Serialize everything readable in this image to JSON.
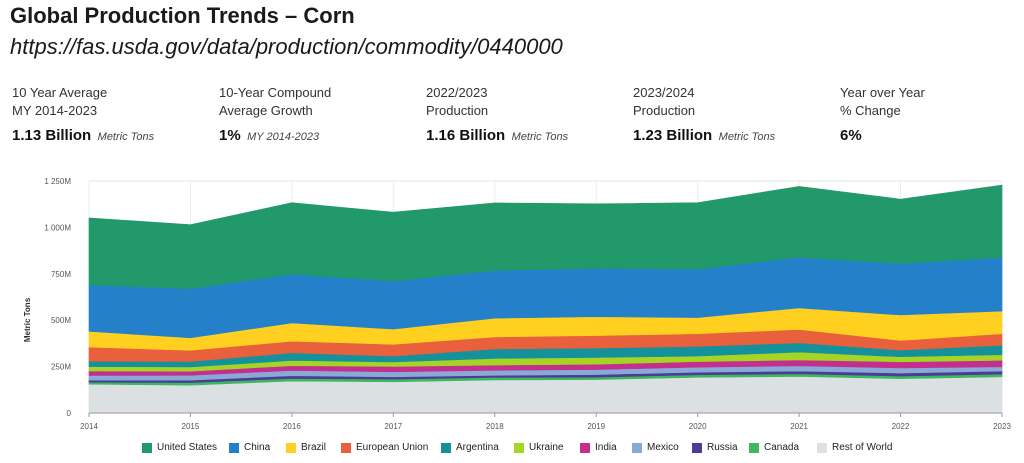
{
  "header": {
    "title": "Global Production Trends – Corn",
    "url": "https://fas.usda.gov/data/production/commodity/0440000"
  },
  "stats": [
    {
      "label1": "10 Year Average",
      "label2": "MY 2014-2023",
      "value": "1.13 Billion",
      "unit": "Metric Tons"
    },
    {
      "label1": "10-Year Compound",
      "label2": "Average Growth",
      "value": "1%",
      "unit": "MY 2014-2023"
    },
    {
      "label1": "2022/2023",
      "label2": "Production",
      "value": "1.16 Billion",
      "unit": "Metric Tons"
    },
    {
      "label1": "2023/2024",
      "label2": "Production",
      "value": "1.23 Billion",
      "unit": "Metric Tons"
    },
    {
      "label1": "Year over Year",
      "label2": "% Change",
      "value": "6%",
      "unit": ""
    }
  ],
  "chart_data": {
    "type": "area",
    "stacked": true,
    "title": "",
    "xlabel": "",
    "ylabel": "Metric Tons",
    "x": [
      2014,
      2015,
      2016,
      2017,
      2018,
      2019,
      2020,
      2021,
      2022,
      2023
    ],
    "ylim": [
      0,
      1250
    ],
    "yticks": [
      0,
      250,
      500,
      750,
      1000,
      1250
    ],
    "ytick_labels": [
      "0",
      "250M",
      "500M",
      "750M",
      "1 000M",
      "1 250M"
    ],
    "series": [
      {
        "name": "Rest of World",
        "color": "#dbe0e3",
        "values": [
          155,
          150,
          172,
          168,
          178,
          180,
          192,
          197,
          185,
          195
        ]
      },
      {
        "name": "Canada",
        "color": "#3db85c",
        "values": [
          11,
          14,
          14,
          14,
          14,
          13,
          14,
          14,
          14,
          15
        ]
      },
      {
        "name": "Russia",
        "color": "#4b3c96",
        "values": [
          11,
          13,
          15,
          13,
          11,
          14,
          14,
          15,
          16,
          16
        ]
      },
      {
        "name": "Mexico",
        "color": "#8aa9d6",
        "values": [
          25,
          26,
          28,
          27,
          27,
          27,
          27,
          28,
          28,
          23
        ]
      },
      {
        "name": "India",
        "color": "#c22f8f",
        "values": [
          24,
          22,
          26,
          29,
          28,
          29,
          30,
          32,
          33,
          35
        ]
      },
      {
        "name": "Ukraine",
        "color": "#a6d424",
        "values": [
          24,
          23,
          28,
          24,
          36,
          36,
          30,
          42,
          27,
          30
        ]
      },
      {
        "name": "Argentina",
        "color": "#14919b",
        "values": [
          29,
          30,
          41,
          32,
          51,
          51,
          52,
          50,
          36,
          51
        ]
      },
      {
        "name": "European Union",
        "color": "#e8603c",
        "values": [
          76,
          60,
          63,
          63,
          65,
          67,
          68,
          72,
          52,
          62
        ]
      },
      {
        "name": "Brazil",
        "color": "#ffd020",
        "values": [
          85,
          67,
          98,
          82,
          101,
          102,
          87,
          116,
          137,
          122
        ]
      },
      {
        "name": "China",
        "color": "#2481c9",
        "values": [
          250,
          265,
          263,
          259,
          257,
          261,
          261,
          273,
          277,
          289
        ]
      },
      {
        "name": "United States",
        "color": "#21996b",
        "values": [
          361,
          345,
          385,
          371,
          364,
          347,
          358,
          382,
          347,
          390
        ]
      }
    ]
  },
  "legend_order": [
    "United States",
    "China",
    "Brazil",
    "European Union",
    "Argentina",
    "Ukraine",
    "India",
    "Mexico",
    "Russia",
    "Canada",
    "Rest of World"
  ]
}
